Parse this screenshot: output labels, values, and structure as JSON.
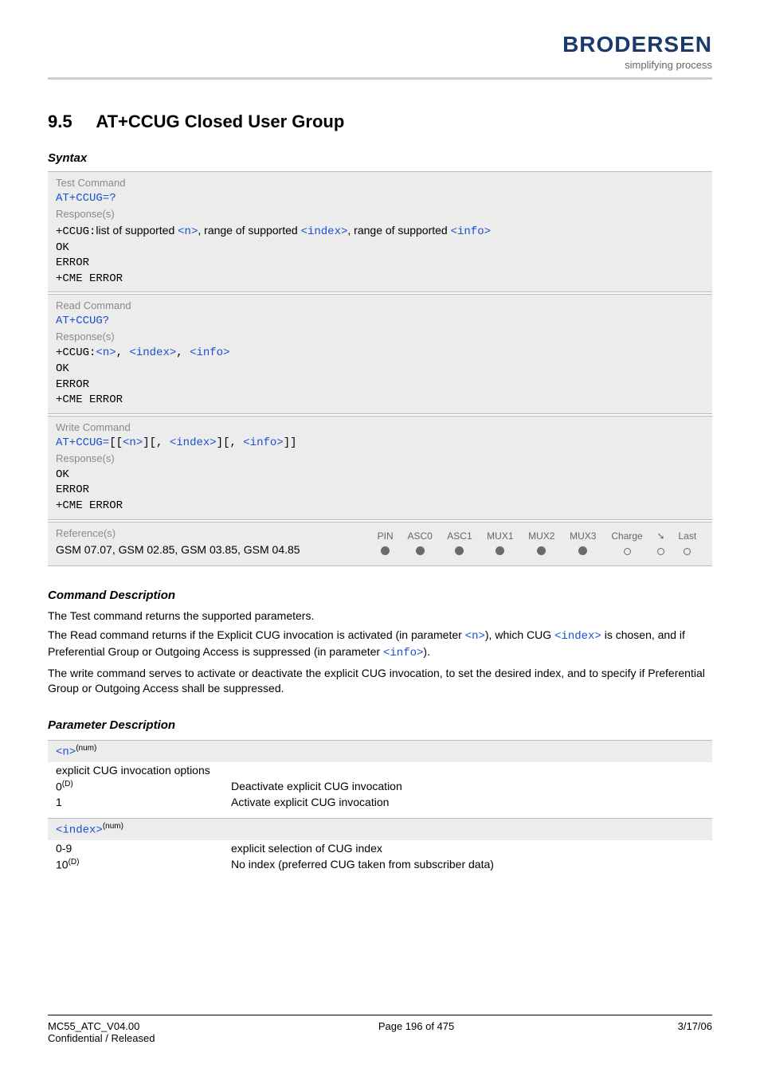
{
  "header": {
    "logo": "BRODERSEN",
    "tagline": "simplifying process"
  },
  "section": {
    "number": "9.5",
    "title": "AT+CCUG   Closed User Group"
  },
  "syntax": {
    "heading": "Syntax",
    "test_command": {
      "label": "Test Command",
      "cmd": "AT+CCUG=?",
      "resp_label": "Response(s)",
      "resp_prefix": "+CCUG:",
      "resp_text1": "list of supported ",
      "resp_n": "<n>",
      "resp_text2": ", range of supported ",
      "resp_index": "<index>",
      "resp_text3": ", range of supported ",
      "resp_info": "<info>",
      "ok": "OK",
      "error": "ERROR",
      "cme": "+CME ERROR"
    },
    "read_command": {
      "label": "Read Command",
      "cmd": "AT+CCUG?",
      "resp_label": "Response(s)",
      "resp_prefix": "+CCUG:",
      "resp_n": "<n>",
      "resp_index": "<index>",
      "resp_info": "<info>",
      "ok": "OK",
      "error": "ERROR",
      "cme": "+CME ERROR"
    },
    "write_command": {
      "label": "Write Command",
      "cmd_prefix": "AT+CCUG=",
      "cmd_n": "<n>",
      "cmd_index": "<index>",
      "cmd_info": "<info>",
      "resp_label": "Response(s)",
      "ok": "OK",
      "error": "ERROR",
      "cme": "+CME ERROR"
    },
    "references": {
      "label": "Reference(s)",
      "text": "GSM 07.07, GSM 02.85, GSM 03.85, GSM 04.85",
      "cols": [
        "PIN",
        "ASC0",
        "ASC1",
        "MUX1",
        "MUX2",
        "MUX3",
        "Charge",
        "",
        "Last"
      ],
      "vals": [
        "filled",
        "filled",
        "filled",
        "filled",
        "filled",
        "filled",
        "empty",
        "empty",
        "empty"
      ],
      "ring_icon": "➘"
    }
  },
  "command_description": {
    "heading": "Command Description",
    "p1": "The Test command returns the supported parameters.",
    "p2a": "The Read command returns if the Explicit CUG invocation is activated (in parameter ",
    "p2_n": "<n>",
    "p2b": "), which CUG ",
    "p2_index": "<index>",
    "p2c": " is chosen, and if Preferential Group or Outgoing Access is suppressed (in parameter ",
    "p2_info": "<info>",
    "p2d": ").",
    "p3": "The write command serves to activate or deactivate the explicit CUG invocation, to set the desired index, and to specify if Preferential Group or Outgoing Access shall be suppressed."
  },
  "parameter_description": {
    "heading": "Parameter Description",
    "params": [
      {
        "name": "<n>",
        "sup": "(num)",
        "intro": "explicit CUG invocation options",
        "rows": [
          {
            "key": "0",
            "key_sup": "(D)",
            "val": "Deactivate explicit CUG invocation"
          },
          {
            "key": "1",
            "key_sup": "",
            "val": "Activate explicit CUG invocation"
          }
        ]
      },
      {
        "name": "<index>",
        "sup": "(num)",
        "intro": "",
        "rows": [
          {
            "key": "0-9",
            "key_sup": "",
            "val": "explicit selection of CUG index"
          },
          {
            "key": "10",
            "key_sup": "(D)",
            "val": "No index (preferred CUG taken from subscriber data)"
          }
        ]
      }
    ]
  },
  "footer": {
    "left1": "MC55_ATC_V04.00",
    "left2": "Confidential / Released",
    "center": "Page 196 of 475",
    "right": "3/17/06"
  }
}
